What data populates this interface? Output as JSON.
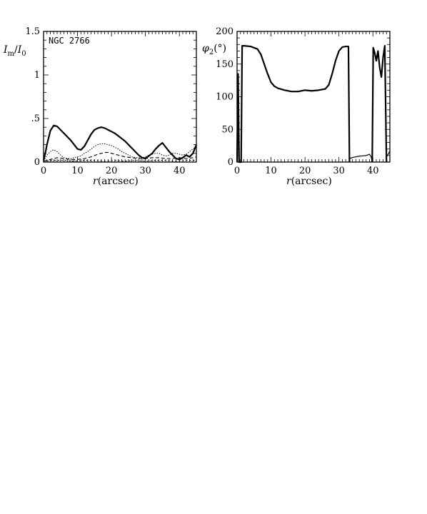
{
  "chart_data": [
    {
      "type": "line",
      "annotation": "NGC 2766",
      "xlabel": "r(arcsec)",
      "ylabel": "I_m/I_0",
      "xlim": [
        0,
        45
      ],
      "ylim": [
        0,
        1.5
      ],
      "xticks": [
        0,
        10,
        20,
        30,
        40
      ],
      "xtick_labels": [
        "0",
        "10",
        "20",
        "30",
        "40"
      ],
      "yticks": [
        0,
        0.5,
        1,
        1.5
      ],
      "ytick_labels": [
        "0",
        ".5",
        "1",
        "1.5"
      ],
      "series": [
        {
          "style": "solid-thick",
          "x": [
            0,
            0.5,
            1,
            2,
            3,
            4,
            5,
            6,
            7,
            8,
            9,
            10,
            11,
            12,
            13,
            14,
            15,
            16,
            17,
            18,
            19,
            20,
            21,
            22,
            23,
            24,
            25,
            26,
            27,
            28,
            29,
            30,
            31,
            32,
            33,
            34,
            35,
            36,
            37,
            38,
            39,
            40,
            41,
            42,
            43,
            44,
            45
          ],
          "y": [
            0.02,
            0.1,
            0.2,
            0.36,
            0.42,
            0.41,
            0.37,
            0.33,
            0.29,
            0.25,
            0.2,
            0.15,
            0.14,
            0.18,
            0.25,
            0.32,
            0.37,
            0.39,
            0.4,
            0.39,
            0.37,
            0.35,
            0.33,
            0.3,
            0.27,
            0.24,
            0.2,
            0.16,
            0.12,
            0.08,
            0.05,
            0.04,
            0.07,
            0.1,
            0.15,
            0.19,
            0.22,
            0.17,
            0.12,
            0.08,
            0.04,
            0.03,
            0.05,
            0.08,
            0.06,
            0.1,
            0.2
          ]
        },
        {
          "style": "dotted",
          "x": [
            0,
            1,
            2,
            3,
            4,
            5,
            6,
            7,
            8,
            9,
            10,
            11,
            12,
            13,
            14,
            15,
            16,
            17,
            18,
            19,
            20,
            21,
            22,
            23,
            24,
            25,
            26,
            27,
            28,
            29,
            30,
            31,
            32,
            33,
            34,
            35,
            36,
            37,
            38,
            39,
            40,
            41,
            42,
            43,
            44,
            45
          ],
          "y": [
            0.01,
            0.08,
            0.12,
            0.14,
            0.12,
            0.08,
            0.05,
            0.04,
            0.04,
            0.05,
            0.06,
            0.07,
            0.1,
            0.12,
            0.15,
            0.18,
            0.2,
            0.21,
            0.21,
            0.2,
            0.19,
            0.17,
            0.15,
            0.12,
            0.1,
            0.08,
            0.06,
            0.05,
            0.05,
            0.05,
            0.06,
            0.08,
            0.09,
            0.1,
            0.1,
            0.08,
            0.07,
            0.08,
            0.1,
            0.1,
            0.09,
            0.08,
            0.09,
            0.12,
            0.15,
            0.18
          ]
        },
        {
          "style": "dashed",
          "x": [
            0,
            2,
            4,
            6,
            8,
            10,
            12,
            14,
            16,
            17,
            18,
            19,
            20,
            21,
            22,
            24,
            26,
            28,
            30,
            32,
            34,
            36,
            38,
            40,
            42,
            44,
            45
          ],
          "y": [
            0.01,
            0.03,
            0.05,
            0.04,
            0.03,
            0.03,
            0.04,
            0.06,
            0.09,
            0.1,
            0.11,
            0.11,
            0.1,
            0.09,
            0.08,
            0.06,
            0.05,
            0.04,
            0.04,
            0.05,
            0.05,
            0.04,
            0.04,
            0.05,
            0.04,
            0.05,
            0.06
          ]
        },
        {
          "style": "short-dash",
          "x": [
            0,
            3,
            6,
            9,
            12,
            15,
            18,
            21,
            24,
            27,
            30,
            33,
            36,
            39,
            42,
            45
          ],
          "y": [
            0.01,
            0.02,
            0.02,
            0.01,
            0.02,
            0.02,
            0.01,
            0.02,
            0.01,
            0.02,
            0.01,
            0.02,
            0.02,
            0.01,
            0.02,
            0.02
          ]
        }
      ]
    },
    {
      "type": "line",
      "xlabel": "r(arcsec)",
      "ylabel": "φ2(°)",
      "xlim": [
        0,
        45
      ],
      "ylim": [
        0,
        200
      ],
      "xticks": [
        0,
        10,
        20,
        30,
        40
      ],
      "xtick_labels": [
        "0",
        "10",
        "20",
        "30",
        "40"
      ],
      "yticks": [
        0,
        50,
        100,
        150,
        200
      ],
      "ytick_labels": [
        "0",
        "50",
        "100",
        "150",
        "200"
      ],
      "series": [
        {
          "style": "solid-thick",
          "x": [
            0,
            0.3,
            0.6,
            0.9,
            1.2,
            1.5,
            2,
            4,
            6,
            7,
            8,
            9,
            10,
            11,
            12,
            14,
            16,
            18,
            20,
            22,
            24,
            26,
            27,
            28,
            29,
            30,
            31,
            32,
            32.8,
            33.1
          ],
          "y": [
            0,
            135,
            0,
            0,
            0,
            178,
            178,
            177,
            173,
            165,
            150,
            135,
            122,
            116,
            113,
            110,
            108,
            108,
            110,
            109,
            110,
            112,
            118,
            135,
            155,
            170,
            176,
            177,
            177,
            0
          ]
        },
        {
          "style": "solid",
          "x": [
            33.1,
            34,
            36,
            38,
            39,
            39.5,
            39.8
          ],
          "y": [
            5,
            7,
            9,
            10,
            12,
            8,
            0
          ]
        },
        {
          "style": "solid-thick",
          "x": [
            39.8,
            40.1,
            40.5,
            41,
            41.5,
            42,
            42.5,
            43,
            43.5,
            44
          ],
          "y": [
            0,
            175,
            168,
            155,
            170,
            145,
            130,
            160,
            178,
            0
          ]
        },
        {
          "style": "solid",
          "x": [
            44,
            44.5,
            45
          ],
          "y": [
            8,
            12,
            17
          ]
        }
      ]
    }
  ]
}
